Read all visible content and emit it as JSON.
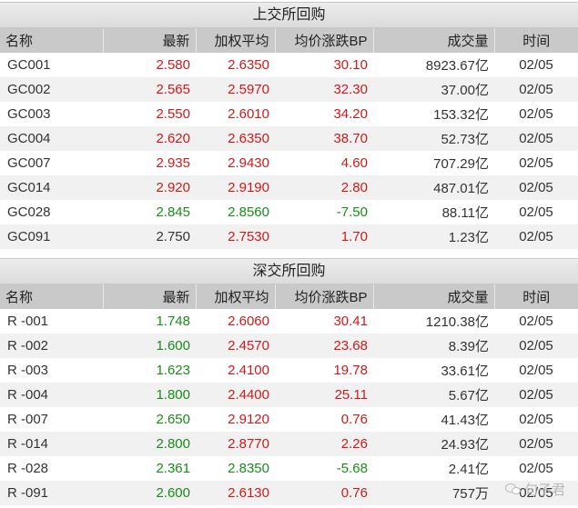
{
  "colors": {
    "up": "#d01a1a",
    "down": "#1a8c1a",
    "header_bg": "#c9c9c9"
  },
  "headers": {
    "name": "名称",
    "last": "最新",
    "wavg": "加权平均",
    "bp": "均价涨跌BP",
    "volume": "成交量",
    "time": "时间"
  },
  "sh": {
    "title": "上交所回购",
    "rows": [
      {
        "name": "GC001",
        "last": "2.580",
        "last_dir": "up",
        "wavg": "2.6350",
        "wavg_dir": "up",
        "bp": "30.10",
        "bp_dir": "up",
        "volume": "8923.67亿",
        "time": "02/05"
      },
      {
        "name": "GC002",
        "last": "2.565",
        "last_dir": "up",
        "wavg": "2.5970",
        "wavg_dir": "up",
        "bp": "32.30",
        "bp_dir": "up",
        "volume": "37.00亿",
        "time": "02/05"
      },
      {
        "name": "GC003",
        "last": "2.550",
        "last_dir": "up",
        "wavg": "2.6010",
        "wavg_dir": "up",
        "bp": "34.20",
        "bp_dir": "up",
        "volume": "153.32亿",
        "time": "02/05"
      },
      {
        "name": "GC004",
        "last": "2.620",
        "last_dir": "up",
        "wavg": "2.6350",
        "wavg_dir": "up",
        "bp": "38.70",
        "bp_dir": "up",
        "volume": "52.73亿",
        "time": "02/05"
      },
      {
        "name": "GC007",
        "last": "2.935",
        "last_dir": "up",
        "wavg": "2.9430",
        "wavg_dir": "up",
        "bp": "4.60",
        "bp_dir": "up",
        "volume": "707.29亿",
        "time": "02/05"
      },
      {
        "name": "GC014",
        "last": "2.920",
        "last_dir": "up",
        "wavg": "2.9190",
        "wavg_dir": "up",
        "bp": "2.80",
        "bp_dir": "up",
        "volume": "487.01亿",
        "time": "02/05"
      },
      {
        "name": "GC028",
        "last": "2.845",
        "last_dir": "down",
        "wavg": "2.8560",
        "wavg_dir": "down",
        "bp": "-7.50",
        "bp_dir": "down",
        "volume": "88.11亿",
        "time": "02/05"
      },
      {
        "name": "GC091",
        "last": "2.750",
        "last_dir": "flat",
        "wavg": "2.7530",
        "wavg_dir": "up",
        "bp": "1.70",
        "bp_dir": "up",
        "volume": "1.23亿",
        "time": "02/05"
      }
    ]
  },
  "sz": {
    "title": "深交所回购",
    "rows": [
      {
        "name": "R -001",
        "last": "1.748",
        "last_dir": "down",
        "wavg": "2.6060",
        "wavg_dir": "up",
        "bp": "30.41",
        "bp_dir": "up",
        "volume": "1210.38亿",
        "time": "02/05"
      },
      {
        "name": "R -002",
        "last": "1.600",
        "last_dir": "down",
        "wavg": "2.4570",
        "wavg_dir": "up",
        "bp": "23.68",
        "bp_dir": "up",
        "volume": "8.39亿",
        "time": "02/05"
      },
      {
        "name": "R -003",
        "last": "1.623",
        "last_dir": "down",
        "wavg": "2.4100",
        "wavg_dir": "up",
        "bp": "19.78",
        "bp_dir": "up",
        "volume": "33.61亿",
        "time": "02/05"
      },
      {
        "name": "R -004",
        "last": "1.800",
        "last_dir": "down",
        "wavg": "2.4400",
        "wavg_dir": "up",
        "bp": "25.11",
        "bp_dir": "up",
        "volume": "5.67亿",
        "time": "02/05"
      },
      {
        "name": "R -007",
        "last": "2.650",
        "last_dir": "down",
        "wavg": "2.9120",
        "wavg_dir": "up",
        "bp": "0.76",
        "bp_dir": "up",
        "volume": "41.43亿",
        "time": "02/05"
      },
      {
        "name": "R -014",
        "last": "2.800",
        "last_dir": "down",
        "wavg": "2.8770",
        "wavg_dir": "up",
        "bp": "2.26",
        "bp_dir": "up",
        "volume": "24.93亿",
        "time": "02/05"
      },
      {
        "name": "R -028",
        "last": "2.361",
        "last_dir": "down",
        "wavg": "2.8350",
        "wavg_dir": "down",
        "bp": "-5.68",
        "bp_dir": "down",
        "volume": "2.41亿",
        "time": "02/05"
      },
      {
        "name": "R -091",
        "last": "2.600",
        "last_dir": "down",
        "wavg": "2.6130",
        "wavg_dir": "up",
        "bp": "0.76",
        "bp_dir": "up",
        "volume": "757万",
        "time": "02/05"
      }
    ]
  },
  "watermark": {
    "text": "句子君",
    "icon": "wechat-icon"
  }
}
